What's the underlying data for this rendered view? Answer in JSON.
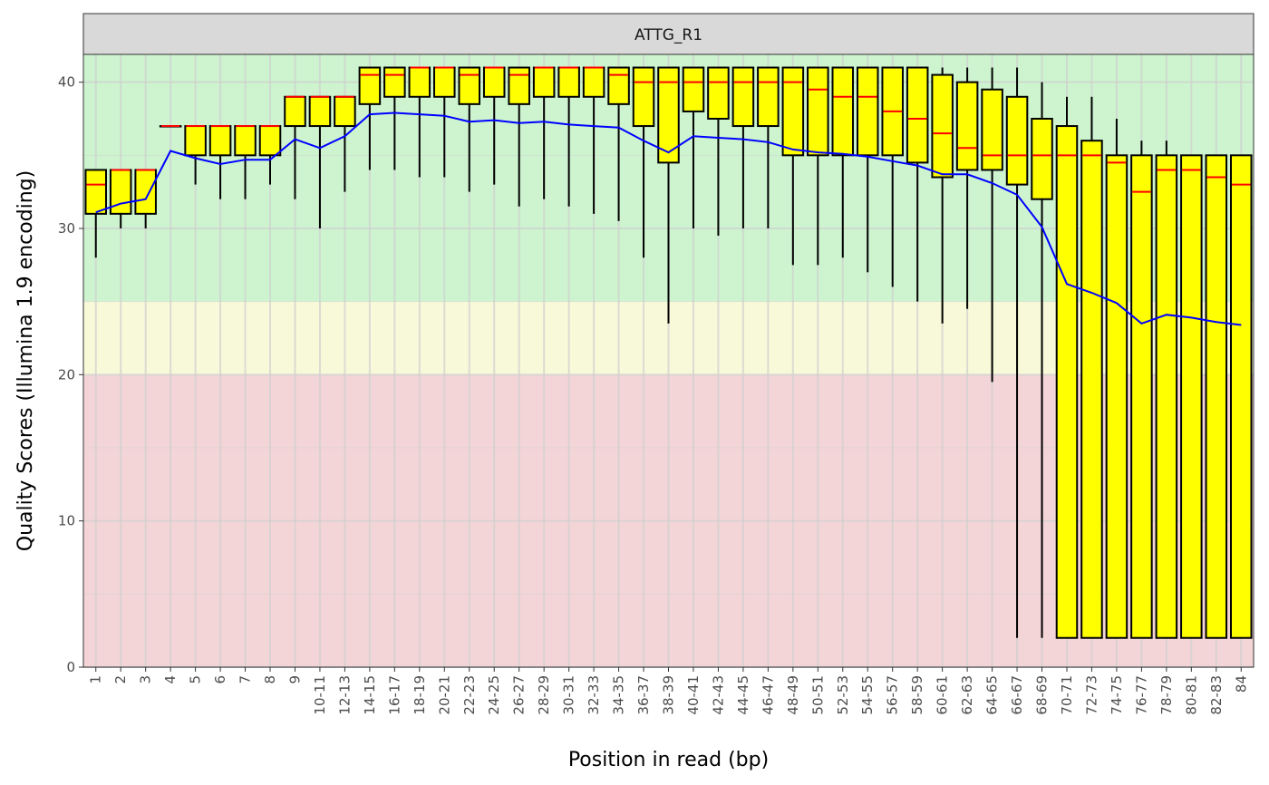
{
  "chart_data": {
    "type": "boxplot",
    "facet_title": "ATTG_R1",
    "xlabel": "Position in read (bp)",
    "ylabel": "Quality Scores (Illumina 1.9 encoding)",
    "ylim": [
      0,
      41.9
    ],
    "y_ticks": [
      0,
      10,
      20,
      30,
      40
    ],
    "grid": true,
    "background_bands": [
      {
        "from": 0,
        "to": 20,
        "color": "#f4d5d7"
      },
      {
        "from": 20,
        "to": 25,
        "color": "#f8f9d9"
      },
      {
        "from": 25,
        "to": 41.9,
        "color": "#cdf4cf"
      }
    ],
    "colors": {
      "box_fill": "#ffff00",
      "box_stroke": "#000000",
      "median": "#ff0000",
      "mean_line": "#0000ff",
      "strip_fill": "#d9d9d9"
    },
    "categories": [
      "1",
      "2",
      "3",
      "4",
      "5",
      "6",
      "7",
      "8",
      "9",
      "10-11",
      "12-13",
      "14-15",
      "16-17",
      "18-19",
      "20-21",
      "22-23",
      "24-25",
      "26-27",
      "28-29",
      "30-31",
      "32-33",
      "34-35",
      "36-37",
      "38-39",
      "40-41",
      "42-43",
      "44-45",
      "46-47",
      "48-49",
      "50-51",
      "52-53",
      "54-55",
      "56-57",
      "58-59",
      "60-61",
      "62-63",
      "64-65",
      "66-67",
      "68-69",
      "70-71",
      "72-73",
      "74-75",
      "76-77",
      "78-79",
      "80-81",
      "82-83",
      "84"
    ],
    "series": [
      {
        "stat": "whisker_low",
        "values": [
          28,
          30,
          30,
          37,
          33,
          32,
          32,
          33,
          32,
          30,
          32.5,
          34,
          34,
          33.5,
          33.5,
          32.5,
          33,
          31.5,
          32,
          31.5,
          31,
          30.5,
          28,
          23.5,
          30,
          29.5,
          30,
          30,
          27.5,
          27.5,
          28,
          27,
          26,
          25,
          23.5,
          24.5,
          19.5,
          2,
          2,
          2,
          2,
          2,
          2,
          2,
          2,
          2,
          2
        ]
      },
      {
        "stat": "q1",
        "values": [
          31,
          31,
          31,
          37,
          35,
          35,
          35,
          35,
          37,
          37,
          37,
          38.5,
          39,
          39,
          39,
          38.5,
          39,
          38.5,
          39,
          39,
          39,
          38.5,
          37,
          34.5,
          38,
          37.5,
          37,
          37,
          35,
          35,
          35,
          35,
          35,
          34.5,
          33.5,
          34,
          34,
          33,
          32,
          2,
          2,
          2,
          2,
          2,
          2,
          2,
          2
        ]
      },
      {
        "stat": "median",
        "values": [
          33,
          34,
          34,
          37,
          37,
          37,
          37,
          37,
          39,
          39,
          39,
          40.5,
          40.5,
          41,
          41,
          40.5,
          41,
          40.5,
          41,
          41,
          41,
          40.5,
          40,
          40,
          40,
          40,
          40,
          40,
          40,
          39.5,
          39,
          39,
          38,
          37.5,
          36.5,
          35.5,
          35,
          35,
          35,
          35,
          35,
          34.5,
          32.5,
          34,
          34,
          33.5,
          33
        ]
      },
      {
        "stat": "q3",
        "values": [
          34,
          34,
          34,
          37,
          37,
          37,
          37,
          37,
          39,
          39,
          39,
          41,
          41,
          41,
          41,
          41,
          41,
          41,
          41,
          41,
          41,
          41,
          41,
          41,
          41,
          41,
          41,
          41,
          41,
          41,
          41,
          41,
          41,
          41,
          40.5,
          40,
          39.5,
          39,
          37.5,
          37,
          36,
          35,
          35,
          35,
          35,
          35,
          35
        ]
      },
      {
        "stat": "whisker_high",
        "values": [
          34,
          34,
          34,
          37,
          37,
          37,
          37,
          37,
          39,
          39,
          39,
          41,
          41,
          41,
          41,
          41,
          41,
          41,
          41,
          41,
          41,
          41,
          41,
          41,
          41,
          41,
          41,
          41,
          41,
          41,
          41,
          41,
          41,
          41,
          41,
          41,
          41,
          41,
          40,
          39,
          39,
          37.5,
          36,
          36,
          35,
          35,
          35
        ]
      },
      {
        "stat": "mean",
        "values": [
          31.1,
          31.7,
          32,
          35.3,
          34.8,
          34.4,
          34.7,
          34.7,
          36.1,
          35.5,
          36.3,
          37.8,
          37.9,
          37.8,
          37.7,
          37.3,
          37.4,
          37.2,
          37.3,
          37.1,
          37,
          36.9,
          36,
          35.2,
          36.3,
          36.2,
          36.1,
          35.9,
          35.4,
          35.2,
          35.1,
          34.9,
          34.6,
          34.3,
          33.7,
          33.7,
          33.1,
          32.3,
          30.1,
          26.2,
          25.6,
          24.9,
          23.5,
          24.1,
          23.9,
          23.6,
          23.4
        ]
      }
    ]
  }
}
